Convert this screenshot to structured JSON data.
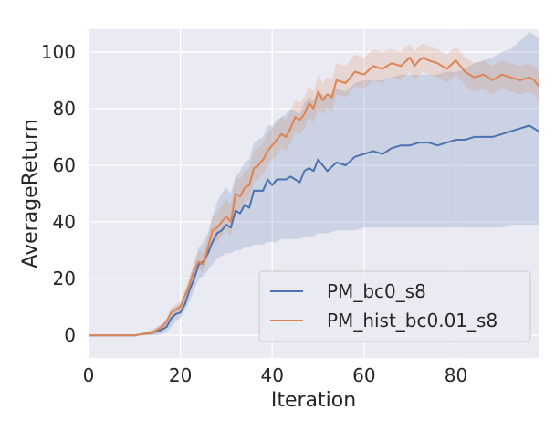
{
  "chart_data": {
    "type": "line",
    "xlabel": "Iteration",
    "ylabel": "AverageReturn",
    "xlim": [
      0,
      98
    ],
    "ylim": [
      -8,
      108
    ],
    "x_ticks": [
      0,
      20,
      40,
      60,
      80
    ],
    "y_ticks": [
      0,
      20,
      40,
      60,
      80,
      100
    ],
    "grid": true,
    "legend_position": "lower-right",
    "background_color": "#eaeaf2",
    "series": [
      {
        "name": "PM_bc0_s8",
        "color": "#4c72b0",
        "x": [
          0,
          2,
          4,
          6,
          8,
          10,
          12,
          14,
          15,
          16,
          17,
          18,
          19,
          20,
          21,
          22,
          23,
          24,
          25,
          26,
          27,
          28,
          29,
          30,
          31,
          32,
          33,
          34,
          35,
          36,
          37,
          38,
          39,
          40,
          41,
          42,
          43,
          44,
          45,
          46,
          47,
          48,
          49,
          50,
          52,
          54,
          56,
          58,
          60,
          62,
          64,
          66,
          68,
          70,
          72,
          74,
          76,
          78,
          80,
          82,
          84,
          86,
          88,
          90,
          92,
          94,
          96,
          98
        ],
        "y": [
          0,
          0,
          0,
          0,
          0,
          0,
          0.5,
          1,
          1.5,
          2,
          3,
          6,
          7.5,
          8,
          11,
          16,
          20,
          25,
          26,
          29,
          33,
          36,
          37,
          39,
          38,
          44,
          43,
          46,
          45,
          51,
          51,
          51,
          55,
          53,
          55,
          55,
          55,
          56,
          55,
          54,
          58,
          59,
          58,
          62,
          58,
          61,
          60,
          63,
          64,
          65,
          64,
          66,
          67,
          67,
          68,
          68,
          67,
          68,
          69,
          69,
          70,
          70,
          70,
          71,
          72,
          73,
          74,
          72
        ],
        "band_lower": [
          0,
          0,
          0,
          0,
          0,
          0,
          0,
          0,
          0,
          0.5,
          1,
          3,
          5,
          6,
          9,
          12,
          16,
          20,
          21,
          23,
          25,
          27,
          28,
          29,
          29,
          30,
          30,
          31,
          31,
          32,
          32,
          32,
          33,
          33,
          33,
          34,
          34,
          34,
          34,
          34,
          35,
          35,
          35,
          36,
          36,
          37,
          37,
          37,
          38,
          38,
          38,
          38,
          38,
          38,
          38,
          38,
          38,
          38,
          38,
          38,
          38,
          38,
          38,
          38,
          39,
          39,
          39,
          39
        ],
        "band_upper": [
          0,
          0,
          0,
          0,
          0,
          0,
          1,
          2,
          3,
          4,
          5,
          9,
          10,
          11,
          14,
          20,
          25,
          31,
          33,
          36,
          42,
          47,
          50,
          52,
          50,
          56,
          58,
          61,
          62,
          68,
          69,
          70,
          74,
          74,
          76,
          77,
          78,
          80,
          79,
          78,
          82,
          84,
          83,
          86,
          84,
          87,
          86,
          89,
          90,
          90,
          90,
          91,
          92,
          92,
          92,
          92,
          92,
          93,
          93,
          94,
          96,
          97,
          98,
          100,
          101,
          104,
          107,
          105
        ]
      },
      {
        "name": "PM_hist_bc0.01_s8",
        "color": "#dd8452",
        "x": [
          0,
          2,
          4,
          6,
          8,
          10,
          12,
          14,
          15,
          16,
          17,
          18,
          19,
          20,
          21,
          22,
          23,
          24,
          25,
          26,
          27,
          28,
          29,
          30,
          31,
          32,
          33,
          34,
          35,
          36,
          37,
          38,
          39,
          40,
          41,
          42,
          43,
          44,
          45,
          46,
          47,
          48,
          49,
          50,
          51,
          52,
          53,
          54,
          56,
          58,
          60,
          62,
          64,
          66,
          68,
          70,
          71,
          72,
          73,
          74,
          76,
          78,
          80,
          82,
          84,
          86,
          88,
          90,
          92,
          94,
          96,
          97,
          98
        ],
        "y": [
          0,
          0,
          0,
          0,
          0,
          0,
          0.5,
          1,
          2,
          3,
          5,
          8,
          9,
          10,
          14,
          18,
          23,
          26,
          25,
          31,
          37,
          38,
          40,
          42,
          40,
          50,
          49,
          52,
          53,
          59,
          60,
          62,
          65,
          67,
          69,
          71,
          70,
          73,
          77,
          76,
          78,
          82,
          80,
          86,
          83,
          85,
          84,
          90,
          89,
          93,
          92,
          95,
          94,
          96,
          95,
          98,
          95,
          97,
          98,
          97,
          96,
          94,
          97,
          93,
          91,
          92,
          90,
          92,
          91,
          90,
          91,
          90,
          88
        ],
        "band_lower": [
          0,
          0,
          0,
          0,
          0,
          0,
          0,
          0,
          1,
          2,
          4,
          6,
          7,
          8,
          12,
          16,
          20,
          23,
          22,
          27,
          32,
          33,
          35,
          37,
          35,
          44,
          44,
          47,
          48,
          54,
          55,
          57,
          60,
          62,
          64,
          66,
          65,
          68,
          72,
          71,
          73,
          77,
          75,
          80,
          78,
          80,
          79,
          85,
          84,
          88,
          87,
          90,
          89,
          91,
          90,
          93,
          90,
          92,
          93,
          92,
          91,
          89,
          92,
          88,
          86,
          87,
          85,
          87,
          86,
          85,
          86,
          85,
          83
        ],
        "band_upper": [
          0,
          0,
          0,
          0,
          0,
          0,
          1,
          2,
          3,
          4,
          6,
          10,
          11,
          12,
          16,
          21,
          26,
          30,
          29,
          35,
          42,
          43,
          46,
          48,
          46,
          56,
          55,
          58,
          59,
          65,
          66,
          68,
          71,
          73,
          75,
          77,
          76,
          79,
          83,
          82,
          84,
          88,
          86,
          92,
          89,
          91,
          90,
          96,
          95,
          99,
          98,
          101,
          100,
          101,
          100,
          103,
          100,
          102,
          103,
          102,
          101,
          99,
          102,
          98,
          96,
          97,
          95,
          97,
          96,
          95,
          96,
          95,
          93
        ]
      }
    ]
  }
}
